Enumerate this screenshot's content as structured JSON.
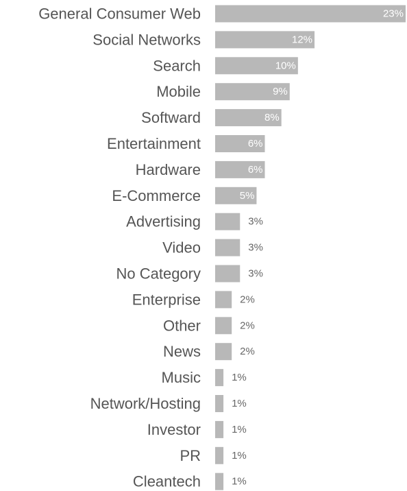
{
  "chart_data": {
    "type": "bar",
    "orientation": "horizontal",
    "title": "",
    "xlabel": "",
    "ylabel": "",
    "xlim": [
      0,
      23
    ],
    "grid": false,
    "legend": "none",
    "bar_color": "#b8b8b8",
    "categories": [
      "General Consumer Web",
      "Social Networks",
      "Search",
      "Mobile",
      "Softward",
      "Entertainment",
      "Hardware",
      "E-Commerce",
      "Advertising",
      "Video",
      "No Category",
      "Enterprise",
      "Other",
      "News",
      "Music",
      "Network/Hosting",
      "Investor",
      "PR",
      "Cleantech"
    ],
    "values": [
      23,
      12,
      10,
      9,
      8,
      6,
      6,
      5,
      3,
      3,
      3,
      2,
      2,
      2,
      1,
      1,
      1,
      1,
      1
    ],
    "value_labels": [
      "23%",
      "12%",
      "10%",
      "9%",
      "8%",
      "6%",
      "6%",
      "5%",
      "3%",
      "3%",
      "3%",
      "2%",
      "2%",
      "2%",
      "1%",
      "1%",
      "1%",
      "1%",
      "1%"
    ]
  }
}
